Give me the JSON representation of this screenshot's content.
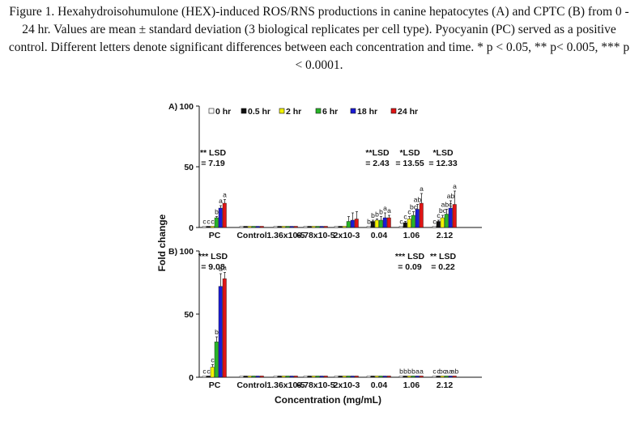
{
  "caption": "Figure 1. Hexahydroisohumulone (HEX)-induced ROS/RNS productions in canine hepatocytes (A) and CPTC (B) from 0 - 24 hr. Values are mean ± standard deviation (3 biological replicates per cell type). Pyocyanin (PC) served as a positive control. Different letters denote significant differences between each concentration and time. * p < 0.05, ** p< 0.005, *** p < 0.0001.",
  "colors": [
    "#ffffff",
    "#111111",
    "#f2f200",
    "#28b428",
    "#1b1bd6",
    "#e01515"
  ],
  "chart_data": {
    "type": "bar",
    "xlabel": "Concentration (mg/mL)",
    "ylabel": "Fold change",
    "ylim": [
      0,
      100
    ],
    "yticks": [
      "0",
      "50",
      "100"
    ],
    "legend": [
      "0 hr",
      "0.5 hr",
      "2 hr",
      "6 hr",
      "18 hr",
      "24 hr"
    ],
    "categories": [
      "PC",
      "Control",
      "1.36x10-5",
      "6.78x10-5",
      "2x10-3",
      "0.04",
      "1.06",
      "2.12"
    ],
    "panels": [
      {
        "label": "A)",
        "series": [
          {
            "name": "0 hr",
            "values": [
              1,
              1,
              1,
              1,
              1,
              1,
              1,
              1
            ]
          },
          {
            "name": "0.5 hr",
            "values": [
              1,
              1,
              1,
              1,
              1,
              5,
              4,
              5
            ]
          },
          {
            "name": "2 hr",
            "values": [
              1,
              1,
              1,
              1,
              1,
              6,
              7,
              8
            ]
          },
          {
            "name": "6 hr",
            "values": [
              8,
              1,
              1,
              1,
              5,
              6,
              10,
              11
            ]
          },
          {
            "name": "18 hr",
            "values": [
              16,
              1,
              1,
              1,
              6,
              8,
              15,
              16
            ]
          },
          {
            "name": "24 hr",
            "values": [
              20,
              1,
              1,
              1,
              7,
              8,
              20,
              19
            ]
          }
        ],
        "errors": [
          [
            0,
            0,
            0,
            0,
            0,
            0,
            0,
            0
          ],
          [
            0,
            0,
            0,
            0,
            0,
            1,
            1,
            1
          ],
          [
            0,
            0,
            0,
            0,
            0,
            1,
            2,
            2
          ],
          [
            1,
            0,
            0,
            0,
            4,
            3,
            3,
            4
          ],
          [
            2,
            0,
            0,
            0,
            6,
            4,
            4,
            6
          ],
          [
            3,
            0,
            0,
            0,
            6,
            2,
            8,
            11
          ]
        ],
        "letters": [
          [
            "c",
            "c",
            "c",
            "b",
            "a",
            "a"
          ],
          [],
          [],
          [],
          [],
          [
            "b",
            "b",
            "b",
            "b",
            "a",
            "a"
          ],
          [
            "c",
            "c",
            "c",
            "bc",
            "ab",
            "a"
          ],
          [
            "c",
            "c",
            "bc",
            "abc",
            "ab",
            "a"
          ]
        ],
        "annotations": [
          {
            "lines": [
              "** LSD",
              "= 7.19"
            ],
            "category": 0
          },
          {
            "lines": [
              "**LSD",
              "= 2.43"
            ],
            "category": 5
          },
          {
            "lines": [
              "*LSD",
              "= 13.55"
            ],
            "category": 6
          },
          {
            "lines": [
              "*LSD",
              "= 12.33"
            ],
            "category": 7
          }
        ]
      },
      {
        "label": "B)",
        "series": [
          {
            "name": "0 hr",
            "values": [
              1,
              1,
              1,
              1,
              1,
              1,
              1,
              1
            ]
          },
          {
            "name": "0.5 hr",
            "values": [
              1,
              1,
              1,
              1,
              1,
              1,
              1,
              1
            ]
          },
          {
            "name": "2 hr",
            "values": [
              8,
              1,
              1,
              1,
              1,
              1,
              1,
              1
            ]
          },
          {
            "name": "6 hr",
            "values": [
              28,
              1,
              1,
              1,
              1,
              1,
              1,
              1
            ]
          },
          {
            "name": "18 hr",
            "values": [
              72,
              1,
              1,
              1,
              1,
              1,
              1,
              1
            ]
          },
          {
            "name": "24 hr",
            "values": [
              78,
              1,
              1,
              1,
              1,
              1,
              1,
              1
            ]
          }
        ],
        "errors": [
          [
            0,
            0,
            0,
            0,
            0,
            0,
            0,
            0
          ],
          [
            0,
            0,
            0,
            0,
            0,
            0,
            0,
            0
          ],
          [
            2,
            0,
            0,
            0,
            0,
            0,
            0,
            0
          ],
          [
            4,
            0,
            0,
            0,
            0,
            0,
            0,
            0
          ],
          [
            10,
            0,
            0,
            0,
            0,
            0,
            0,
            0
          ],
          [
            5,
            0,
            0,
            0,
            0,
            0,
            0,
            0
          ]
        ],
        "letters": [
          [
            "c",
            "c",
            "c",
            "b",
            "a",
            "a"
          ],
          [],
          [],
          [],
          [],
          [],
          [
            "b",
            "b",
            "b",
            "b",
            "a",
            "a"
          ],
          [
            "c",
            "c",
            "bc",
            "a",
            "a",
            "ab"
          ]
        ],
        "annotations": [
          {
            "lines": [
              "*** LSD",
              "= 9.08"
            ],
            "category": 0
          },
          {
            "lines": [
              "*** LSD",
              "= 0.09"
            ],
            "category": 6
          },
          {
            "lines": [
              "** LSD",
              "= 0.22"
            ],
            "category": 7
          }
        ]
      }
    ]
  }
}
